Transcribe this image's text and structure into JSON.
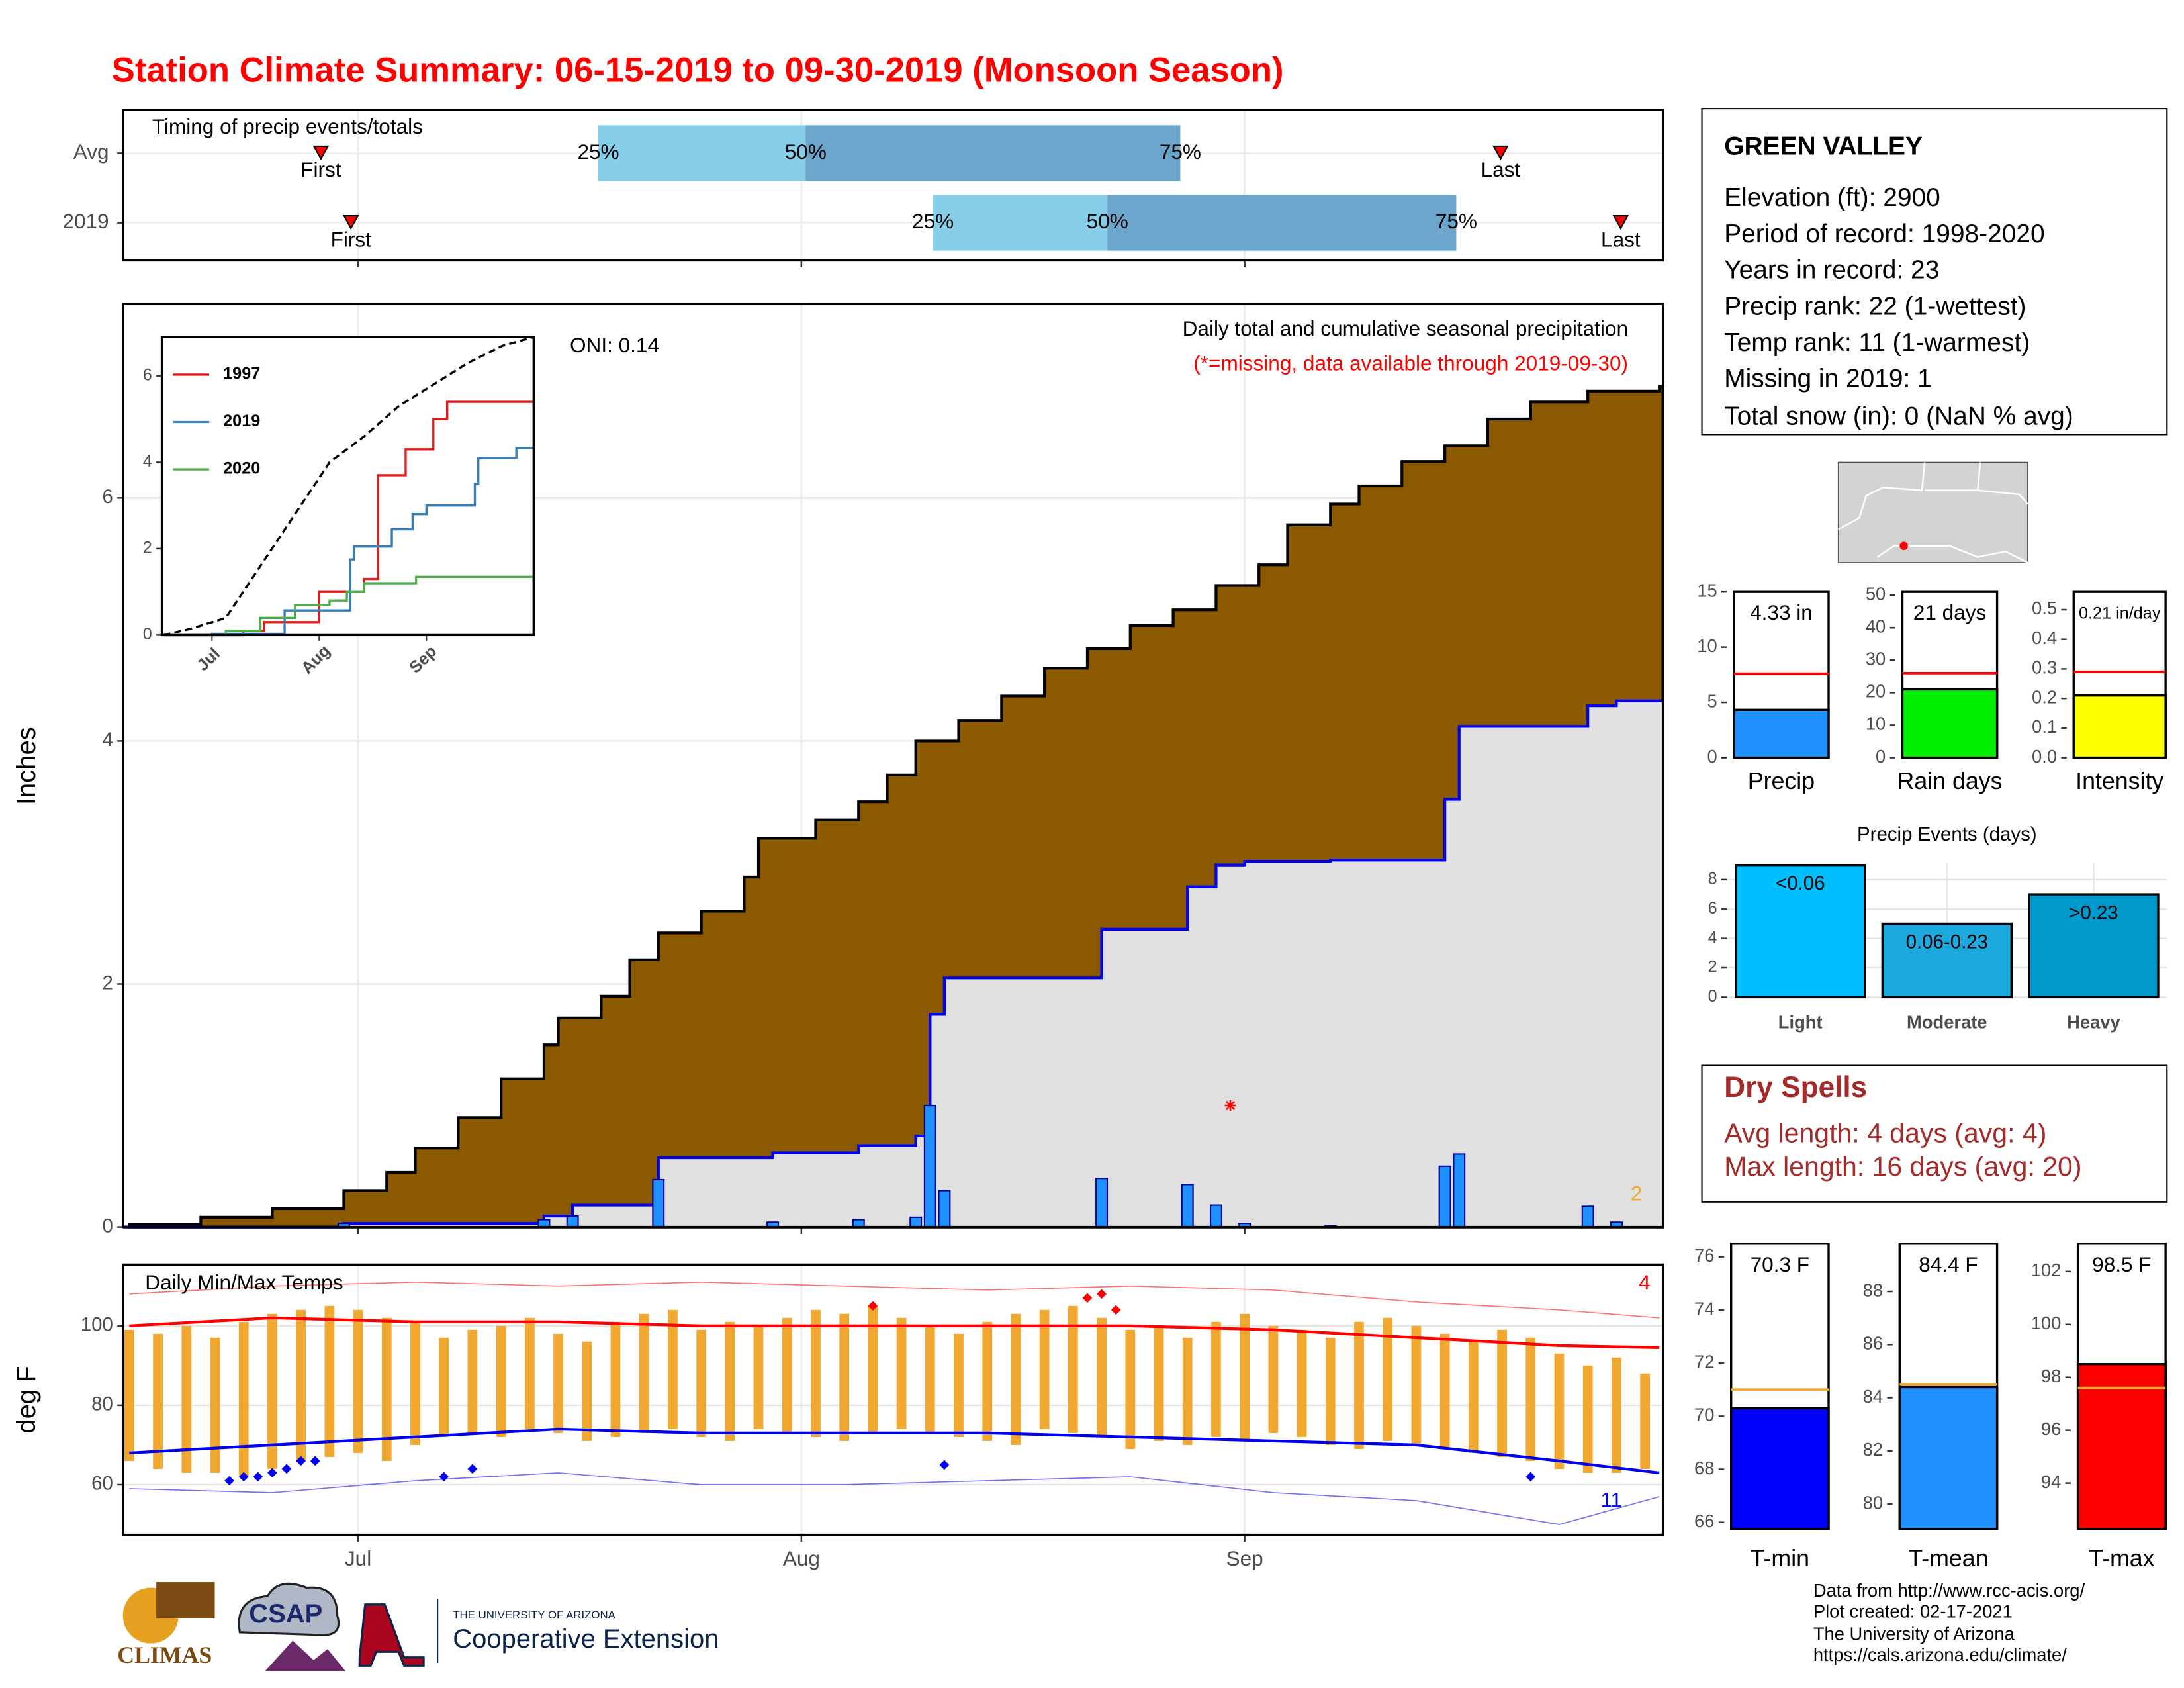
{
  "title": "Station Climate Summary: 06-15-2019 to 09-30-2019 (Monsoon Season)",
  "info": {
    "title": "GREEN VALLEY",
    "lines": [
      "Elevation (ft): 2900",
      "Period of record: 1998-2020",
      "Years in record: 23",
      "Precip rank: 22 (1-wettest)",
      "Temp rank: 11 (1-warmest)",
      "Missing in 2019: 1",
      "Total snow (in): 0 (NaN % avg)"
    ]
  },
  "dry_spells": {
    "title": "Dry Spells",
    "lines": [
      "Avg length: 4 days (avg: 4)",
      "Max length: 16 days (avg: 20)"
    ]
  },
  "footer": {
    "lines": [
      "Data from http://www.rcc-acis.org/",
      "Plot created: 02-17-2021",
      "The University of Arizona",
      "https://cals.arizona.edu/climate/"
    ]
  },
  "logos": {
    "climas": "CLIMAS",
    "csap": "CSAP",
    "university": "THE UNIVERSITY OF ARIZONA",
    "extension": "Cooperative Extension"
  },
  "chart_data": [
    {
      "type": "timeline",
      "title": "Timing of precip events/totals",
      "rows": [
        {
          "label": "Avg",
          "first": 13.4,
          "p25": 32.8,
          "p50": 47.3,
          "p75": 73.5,
          "last": 95.9
        },
        {
          "label": "2019",
          "first": 15.5,
          "p25": 56.2,
          "p50": 68.4,
          "p75": 92.8,
          "last": 104.3
        }
      ],
      "percent_labels": [
        "25%",
        "50%",
        "75%"
      ],
      "first_label": "First",
      "last_label": "Last",
      "colors": [
        "#87ceeb",
        "#6ca6cd"
      ],
      "marker_color": "#ff0000",
      "xlim": [
        -0.45,
        107.25
      ]
    },
    {
      "type": "area",
      "title": "Daily total and cumulative seasonal precipitation",
      "subtitle": "(*=missing, data available through 2019-09-30)",
      "oni": "ONI: 0.14",
      "count": 2,
      "y_label": "Inches",
      "average": {
        "x": [
          0,
          5,
          10,
          15,
          18,
          20,
          23,
          26,
          29,
          30,
          33,
          35,
          37,
          40,
          43,
          44,
          48,
          51,
          53,
          55,
          58,
          61,
          64,
          67,
          70,
          73,
          76,
          79,
          81,
          84,
          86,
          89,
          92,
          95,
          98,
          102,
          107
        ],
        "values": [
          0.02,
          0.08,
          0.15,
          0.3,
          0.45,
          0.65,
          0.9,
          1.22,
          1.5,
          1.72,
          1.9,
          2.2,
          2.42,
          2.6,
          2.88,
          3.2,
          3.35,
          3.5,
          3.72,
          4.0,
          4.17,
          4.37,
          4.6,
          4.76,
          4.95,
          5.08,
          5.28,
          5.45,
          5.78,
          5.95,
          6.1,
          6.3,
          6.43,
          6.65,
          6.79,
          6.88,
          6.92
        ],
        "color": "#8b5a00"
      },
      "series": [
        {
          "x": [
            15,
            29,
            31,
            37,
            45,
            51,
            55,
            56,
            57,
            68,
            74,
            76,
            78,
            84,
            92,
            93,
            102,
            104
          ],
          "values": [
            0.03,
            0.06,
            0.09,
            0.39,
            0.04,
            0.06,
            0.08,
            1.0,
            0.3,
            0.4,
            0.35,
            0.18,
            0.03,
            0.01,
            0.5,
            0.6,
            0.17,
            0.04
          ],
          "color": "#1e90ff",
          "line_color": "#0000ee"
        }
      ],
      "fill": "#e0e0e0",
      "missing": {
        "x": 77,
        "y": 1
      },
      "count_color": "#f0a830",
      "xlim": [
        -0.45,
        107.25
      ],
      "ylim": [
        0,
        7.6
      ],
      "yticks": [
        0,
        2,
        4,
        6
      ],
      "grid": true
    },
    {
      "type": "line",
      "series": [
        {
          "x": [
            2,
            10,
            20,
            30,
            40,
            50,
            60,
            70,
            80,
            90,
            100,
            109
          ],
          "values": [
            0,
            0.15,
            0.4,
            1.6,
            2.8,
            4.0,
            4.6,
            5.3,
            5.8,
            6.3,
            6.7,
            6.9
          ],
          "color": "#000000",
          "dash": true
        },
        {
          "name": "1997",
          "x": [
            2,
            25,
            31,
            47,
            60,
            64,
            72,
            80,
            84,
            109
          ],
          "values": [
            0,
            0.1,
            0.3,
            1.0,
            1.3,
            3.7,
            4.3,
            5.0,
            5.4,
            5.4
          ],
          "color": "#e41a1c"
        },
        {
          "name": "2019",
          "x": [
            2,
            16,
            37,
            56,
            57,
            68,
            74,
            78,
            92,
            93,
            104,
            109
          ],
          "values": [
            0,
            0.03,
            0.57,
            1.75,
            2.05,
            2.45,
            2.8,
            3.0,
            3.5,
            4.1,
            4.33,
            4.33
          ],
          "color": "#377eb8"
        },
        {
          "name": "2020",
          "x": [
            2,
            20,
            30,
            40,
            50,
            55,
            60,
            75,
            109
          ],
          "values": [
            0,
            0.1,
            0.4,
            0.7,
            0.8,
            1.0,
            1.2,
            1.35,
            1.35
          ],
          "color": "#4daf4a"
        }
      ],
      "xlim": [
        1.5,
        109
      ],
      "ylim": [
        0,
        6.9
      ],
      "yticks": [
        0,
        2,
        4,
        6
      ],
      "xticks": [
        {
          "value": 16,
          "label": "Jul"
        },
        {
          "value": 47,
          "label": "Aug"
        },
        {
          "value": 78,
          "label": "Sep"
        }
      ]
    },
    {
      "type": "range",
      "title": "Daily Min/Max Temps",
      "y_label": "deg F",
      "x": [
        0,
        2,
        4,
        6,
        8,
        10,
        12,
        14,
        16,
        18,
        20,
        22,
        24,
        26,
        28,
        30,
        32,
        34,
        36,
        38,
        40,
        42,
        44,
        46,
        48,
        50,
        52,
        54,
        56,
        58,
        60,
        62,
        64,
        66,
        68,
        70,
        72,
        74,
        76,
        78,
        80,
        82,
        84,
        86,
        88,
        90,
        92,
        94,
        96,
        98,
        100,
        102,
        104,
        106
      ],
      "max": [
        99,
        98,
        100,
        97,
        101,
        103,
        104,
        105,
        104,
        102,
        101,
        97,
        99,
        100,
        102,
        98,
        96,
        101,
        103,
        104,
        99,
        101,
        100,
        102,
        104,
        103,
        105,
        102,
        100,
        98,
        101,
        103,
        104,
        105,
        102,
        99,
        100,
        97,
        101,
        103,
        100,
        99,
        97,
        101,
        102,
        100,
        98,
        96,
        99,
        97,
        93,
        90,
        92,
        88
      ],
      "min": [
        66,
        64,
        63,
        63,
        62,
        64,
        66,
        67,
        68,
        66,
        70,
        72,
        73,
        72,
        74,
        73,
        71,
        72,
        73,
        74,
        72,
        71,
        74,
        73,
        72,
        71,
        73,
        74,
        73,
        72,
        71,
        70,
        74,
        73,
        72,
        69,
        71,
        70,
        72,
        71,
        73,
        72,
        70,
        69,
        71,
        70,
        69,
        68,
        67,
        66,
        64,
        63,
        63,
        64
      ],
      "bar_color": "#f0a830",
      "avg_x": [
        0,
        10,
        20,
        30,
        40,
        50,
        60,
        70,
        80,
        90,
        100,
        107
      ],
      "avg_max": [
        100,
        102,
        101,
        101,
        100,
        100,
        100,
        100,
        99,
        97,
        95,
        94.5
      ],
      "avg_min": [
        68,
        70,
        72,
        74,
        73,
        73,
        73,
        72,
        71,
        70,
        66,
        63
      ],
      "record_max": [
        108,
        110,
        111,
        110,
        111,
        110,
        109,
        110,
        109,
        106,
        104,
        102
      ],
      "record_min": [
        59,
        58,
        61,
        63,
        60,
        60,
        61,
        62,
        58,
        56,
        50,
        57
      ],
      "record_highs": {
        "x": [
          52,
          67,
          68,
          69
        ],
        "values": [
          105,
          107,
          108,
          104
        ]
      },
      "record_lows": {
        "x": [
          7,
          8,
          9,
          10,
          11,
          12,
          13,
          22,
          24,
          57,
          98
        ],
        "values": [
          61,
          62,
          62,
          63,
          64,
          66,
          66,
          62,
          64,
          65,
          62
        ]
      },
      "record_high_count": 4,
      "record_low_count": 11,
      "max_color": "#ff0000",
      "min_color": "#0000ee",
      "xlim": [
        -0.45,
        107.25
      ],
      "ylim": [
        47.4,
        115.4
      ],
      "yticks": [
        60,
        80,
        100
      ],
      "xticks": [
        {
          "value": 16,
          "label": "Jul"
        },
        {
          "value": 47,
          "label": "Aug"
        },
        {
          "value": 78,
          "label": "Sep"
        }
      ],
      "grid": true
    },
    {
      "type": "bar",
      "categories": [
        "Precip"
      ],
      "values": [
        4.33
      ],
      "value_labels": [
        "4.33 in"
      ],
      "average": 7.6,
      "color": "#1e90ff",
      "average_color": "#ff0000",
      "ylim": [
        0,
        15
      ],
      "yticks": [
        0,
        5,
        10,
        15
      ]
    },
    {
      "type": "bar",
      "categories": [
        "Rain days"
      ],
      "values": [
        21
      ],
      "value_labels": [
        "21 days"
      ],
      "average": 26,
      "color": "#00ee00",
      "average_color": "#ff0000",
      "ylim": [
        0,
        51
      ],
      "yticks": [
        0,
        10,
        20,
        30,
        40,
        50
      ]
    },
    {
      "type": "bar",
      "categories": [
        "Intensity"
      ],
      "values": [
        0.21
      ],
      "value_labels": [
        "0.21 in/day"
      ],
      "average": 0.29,
      "color": "#ffff00",
      "average_color": "#ff0000",
      "ylim": [
        0,
        0.56
      ],
      "yticks": [
        {
          "value": 0,
          "label": "0.0"
        },
        {
          "value": 0.1,
          "label": "0.1"
        },
        {
          "value": 0.2,
          "label": "0.2"
        },
        {
          "value": 0.3,
          "label": "0.3"
        },
        {
          "value": 0.4,
          "label": "0.4"
        },
        {
          "value": 0.5,
          "label": "0.5"
        }
      ]
    },
    {
      "type": "bar",
      "title": "Precip Events (days)",
      "categories": [
        "Light",
        "Moderate",
        "Heavy"
      ],
      "values": [
        9,
        5,
        7
      ],
      "ranges": [
        "<0.06",
        "0.06-0.23",
        ">0.23"
      ],
      "colors": [
        "#00bfff",
        "#1ca9e0",
        "#0099cc"
      ],
      "ylim": [
        0,
        9.1
      ],
      "yticks": [
        0,
        2,
        4,
        6,
        8
      ],
      "grid": true
    },
    {
      "type": "bar",
      "categories": [
        "T-min"
      ],
      "values": [
        70.3
      ],
      "value_labels": [
        "70.3 F"
      ],
      "average": 71.0,
      "color": "#0000ff",
      "average_color": "#f0a830",
      "ylim": [
        65.74,
        76.5
      ],
      "yticks": [
        66,
        68,
        70,
        72,
        74,
        76
      ]
    },
    {
      "type": "bar",
      "categories": [
        "T-mean"
      ],
      "values": [
        84.4
      ],
      "value_labels": [
        "84.4 F"
      ],
      "average": 84.5,
      "color": "#1e90ff",
      "average_color": "#f0a830",
      "ylim": [
        79.05,
        89.8
      ],
      "yticks": [
        80,
        82,
        84,
        86,
        88
      ]
    },
    {
      "type": "bar",
      "categories": [
        "T-max"
      ],
      "values": [
        98.5
      ],
      "value_labels": [
        "98.5 F"
      ],
      "average": 97.6,
      "color": "#ff0000",
      "average_color": "#f0a830",
      "ylim": [
        92.26,
        103.05
      ],
      "yticks": [
        94,
        96,
        98,
        100,
        102
      ]
    }
  ]
}
